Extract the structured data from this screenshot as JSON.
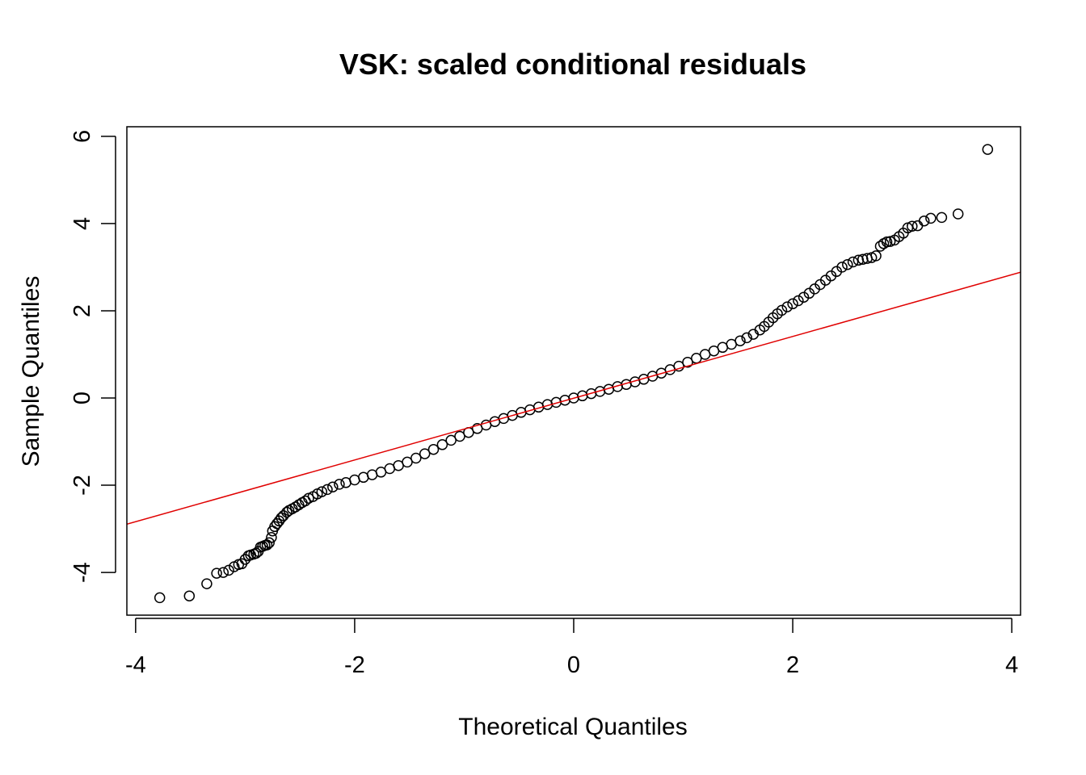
{
  "chart_data": {
    "type": "scatter",
    "title": "VSK: scaled conditional residuals",
    "xlabel": "Theoretical Quantiles",
    "ylabel": "Sample Quantiles",
    "xlim": [
      -4.08,
      4.08
    ],
    "ylim": [
      -4.98,
      6.22
    ],
    "xticks": [
      -4,
      -2,
      0,
      2,
      4
    ],
    "xtick_labels": [
      "-4",
      "-2",
      "0",
      "2",
      "4"
    ],
    "yticks": [
      -4,
      -2,
      0,
      2,
      4,
      6
    ],
    "ytick_labels": [
      "-4",
      "-2",
      "0",
      "2",
      "4",
      "6"
    ],
    "grid": false,
    "marker": "open-circle",
    "point_color": "#000000",
    "reference_line": {
      "color": "#e00000",
      "intercept": -0.005,
      "slope": 0.708
    },
    "series": [
      {
        "points": [
          [
            -3.78,
            -4.58
          ],
          [
            -3.51,
            -4.54
          ],
          [
            -3.35,
            -4.26
          ],
          [
            -3.26,
            -4.02
          ],
          [
            -3.2,
            -4.0
          ],
          [
            -3.15,
            -3.95
          ],
          [
            -3.1,
            -3.87
          ],
          [
            -3.06,
            -3.82
          ],
          [
            -3.03,
            -3.8
          ],
          [
            -3.0,
            -3.7
          ],
          [
            -2.97,
            -3.62
          ],
          [
            -2.95,
            -3.6
          ],
          [
            -2.92,
            -3.58
          ],
          [
            -2.9,
            -3.56
          ],
          [
            -2.88,
            -3.52
          ],
          [
            -2.86,
            -3.42
          ],
          [
            -2.84,
            -3.4
          ],
          [
            -2.82,
            -3.38
          ],
          [
            -2.8,
            -3.37
          ],
          [
            -2.78,
            -3.32
          ],
          [
            -2.76,
            -3.2
          ],
          [
            -2.75,
            -3.05
          ],
          [
            -2.73,
            -2.95
          ],
          [
            -2.71,
            -2.88
          ],
          [
            -2.69,
            -2.82
          ],
          [
            -2.67,
            -2.75
          ],
          [
            -2.65,
            -2.7
          ],
          [
            -2.62,
            -2.62
          ],
          [
            -2.6,
            -2.58
          ],
          [
            -2.57,
            -2.54
          ],
          [
            -2.54,
            -2.5
          ],
          [
            -2.51,
            -2.45
          ],
          [
            -2.48,
            -2.4
          ],
          [
            -2.45,
            -2.36
          ],
          [
            -2.42,
            -2.3
          ],
          [
            -2.38,
            -2.26
          ],
          [
            -2.34,
            -2.2
          ],
          [
            -2.3,
            -2.15
          ],
          [
            -2.25,
            -2.1
          ],
          [
            -2.2,
            -2.04
          ],
          [
            -2.14,
            -1.98
          ],
          [
            -2.08,
            -1.94
          ],
          [
            -2.0,
            -1.88
          ],
          [
            -1.92,
            -1.82
          ],
          [
            -1.84,
            -1.76
          ],
          [
            -1.76,
            -1.7
          ],
          [
            -1.68,
            -1.62
          ],
          [
            -1.6,
            -1.55
          ],
          [
            -1.52,
            -1.47
          ],
          [
            -1.44,
            -1.38
          ],
          [
            -1.36,
            -1.28
          ],
          [
            -1.28,
            -1.18
          ],
          [
            -1.2,
            -1.07
          ],
          [
            -1.12,
            -0.97
          ],
          [
            -1.04,
            -0.88
          ],
          [
            -0.96,
            -0.79
          ],
          [
            -0.88,
            -0.7
          ],
          [
            -0.8,
            -0.62
          ],
          [
            -0.72,
            -0.54
          ],
          [
            -0.64,
            -0.47
          ],
          [
            -0.56,
            -0.4
          ],
          [
            -0.48,
            -0.33
          ],
          [
            -0.4,
            -0.27
          ],
          [
            -0.32,
            -0.21
          ],
          [
            -0.24,
            -0.15
          ],
          [
            -0.16,
            -0.1
          ],
          [
            -0.08,
            -0.05
          ],
          [
            0.0,
            0.0
          ],
          [
            0.08,
            0.05
          ],
          [
            0.16,
            0.1
          ],
          [
            0.24,
            0.15
          ],
          [
            0.32,
            0.2
          ],
          [
            0.4,
            0.26
          ],
          [
            0.48,
            0.31
          ],
          [
            0.56,
            0.37
          ],
          [
            0.64,
            0.43
          ],
          [
            0.72,
            0.5
          ],
          [
            0.8,
            0.57
          ],
          [
            0.88,
            0.65
          ],
          [
            0.96,
            0.73
          ],
          [
            1.04,
            0.82
          ],
          [
            1.12,
            0.91
          ],
          [
            1.2,
            1.0
          ],
          [
            1.28,
            1.08
          ],
          [
            1.36,
            1.16
          ],
          [
            1.44,
            1.23
          ],
          [
            1.52,
            1.31
          ],
          [
            1.58,
            1.38
          ],
          [
            1.64,
            1.46
          ],
          [
            1.7,
            1.56
          ],
          [
            1.74,
            1.64
          ],
          [
            1.78,
            1.74
          ],
          [
            1.82,
            1.84
          ],
          [
            1.86,
            1.93
          ],
          [
            1.9,
            2.01
          ],
          [
            1.95,
            2.09
          ],
          [
            2.0,
            2.16
          ],
          [
            2.05,
            2.23
          ],
          [
            2.1,
            2.31
          ],
          [
            2.15,
            2.4
          ],
          [
            2.2,
            2.5
          ],
          [
            2.25,
            2.6
          ],
          [
            2.3,
            2.7
          ],
          [
            2.35,
            2.8
          ],
          [
            2.4,
            2.9
          ],
          [
            2.45,
            3.0
          ],
          [
            2.5,
            3.06
          ],
          [
            2.55,
            3.12
          ],
          [
            2.6,
            3.16
          ],
          [
            2.64,
            3.18
          ],
          [
            2.68,
            3.2
          ],
          [
            2.72,
            3.22
          ],
          [
            2.76,
            3.26
          ],
          [
            2.8,
            3.48
          ],
          [
            2.83,
            3.54
          ],
          [
            2.86,
            3.58
          ],
          [
            2.89,
            3.59
          ],
          [
            2.93,
            3.62
          ],
          [
            2.97,
            3.7
          ],
          [
            3.01,
            3.78
          ],
          [
            3.05,
            3.9
          ],
          [
            3.09,
            3.94
          ],
          [
            3.14,
            3.95
          ],
          [
            3.2,
            4.06
          ],
          [
            3.26,
            4.12
          ],
          [
            3.36,
            4.14
          ],
          [
            3.51,
            4.22
          ],
          [
            3.78,
            5.7
          ]
        ]
      }
    ]
  }
}
